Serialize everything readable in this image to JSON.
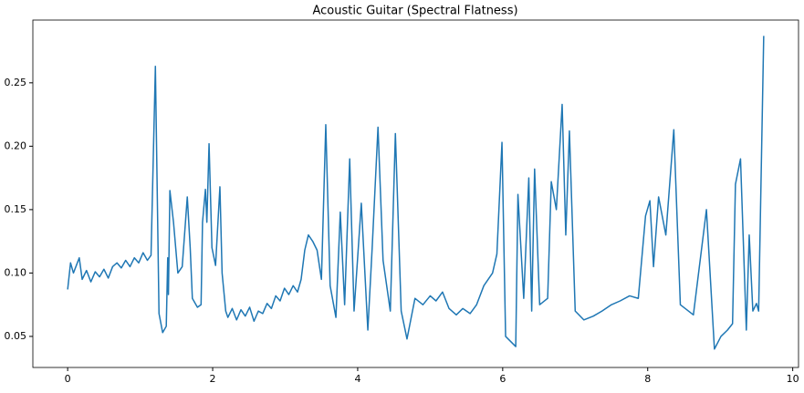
{
  "chart_data": {
    "type": "line",
    "title": "Acoustic Guitar (Spectral Flatness)",
    "x": [
      0,
      0.04,
      0.08,
      0.12,
      0.16,
      0.2,
      0.26,
      0.32,
      0.38,
      0.44,
      0.5,
      0.56,
      0.62,
      0.68,
      0.74,
      0.8,
      0.86,
      0.92,
      0.98,
      1.04,
      1.1,
      1.15,
      1.21,
      1.26,
      1.31,
      1.36,
      1.38,
      1.39,
      1.41,
      1.46,
      1.52,
      1.58,
      1.65,
      1.69,
      1.72,
      1.79,
      1.84,
      1.86,
      1.9,
      1.92,
      1.95,
      1.99,
      2.04,
      2.1,
      2.13,
      2.18,
      2.21,
      2.27,
      2.33,
      2.39,
      2.45,
      2.51,
      2.57,
      2.63,
      2.69,
      2.75,
      2.81,
      2.87,
      2.93,
      2.99,
      3.05,
      3.11,
      3.17,
      3.22,
      3.27,
      3.32,
      3.38,
      3.44,
      3.5,
      3.56,
      3.62,
      3.7,
      3.76,
      3.82,
      3.89,
      3.95,
      4.05,
      4.14,
      4.2,
      4.28,
      4.35,
      4.45,
      4.52,
      4.6,
      4.68,
      4.79,
      4.9,
      5.0,
      5.08,
      5.17,
      5.26,
      5.36,
      5.45,
      5.55,
      5.64,
      5.74,
      5.86,
      5.92,
      5.99,
      6.04,
      6.18,
      6.21,
      6.29,
      6.36,
      6.4,
      6.44,
      6.51,
      6.62,
      6.67,
      6.74,
      6.82,
      6.87,
      6.92,
      7.0,
      7.12,
      7.25,
      7.37,
      7.5,
      7.62,
      7.75,
      7.87,
      7.97,
      8.03,
      8.08,
      8.15,
      8.25,
      8.36,
      8.45,
      8.63,
      8.81,
      8.92,
      9.01,
      9.1,
      9.17,
      9.21,
      9.28,
      9.36,
      9.4,
      9.45,
      9.5,
      9.53,
      9.6
    ],
    "values": [
      0.087,
      0.108,
      0.1,
      0.106,
      0.112,
      0.095,
      0.102,
      0.093,
      0.101,
      0.097,
      0.103,
      0.096,
      0.105,
      0.108,
      0.104,
      0.11,
      0.105,
      0.112,
      0.108,
      0.116,
      0.11,
      0.114,
      0.263,
      0.068,
      0.053,
      0.058,
      0.112,
      0.083,
      0.165,
      0.14,
      0.1,
      0.105,
      0.16,
      0.12,
      0.08,
      0.073,
      0.075,
      0.14,
      0.166,
      0.14,
      0.202,
      0.12,
      0.106,
      0.168,
      0.1,
      0.07,
      0.065,
      0.072,
      0.063,
      0.071,
      0.066,
      0.073,
      0.062,
      0.07,
      0.068,
      0.076,
      0.072,
      0.082,
      0.078,
      0.088,
      0.083,
      0.09,
      0.085,
      0.095,
      0.118,
      0.13,
      0.125,
      0.118,
      0.095,
      0.217,
      0.09,
      0.065,
      0.148,
      0.075,
      0.19,
      0.07,
      0.155,
      0.055,
      0.12,
      0.215,
      0.11,
      0.07,
      0.21,
      0.07,
      0.048,
      0.08,
      0.075,
      0.082,
      0.078,
      0.085,
      0.072,
      0.067,
      0.072,
      0.068,
      0.075,
      0.09,
      0.1,
      0.115,
      0.203,
      0.05,
      0.042,
      0.162,
      0.08,
      0.175,
      0.07,
      0.182,
      0.075,
      0.08,
      0.172,
      0.15,
      0.233,
      0.13,
      0.212,
      0.07,
      0.063,
      0.066,
      0.07,
      0.075,
      0.078,
      0.082,
      0.08,
      0.145,
      0.157,
      0.105,
      0.16,
      0.13,
      0.213,
      0.075,
      0.067,
      0.15,
      0.04,
      0.05,
      0.055,
      0.06,
      0.17,
      0.19,
      0.055,
      0.13,
      0.07,
      0.076,
      0.07,
      0.287
    ],
    "color": "#1f77b4",
    "xlim": [
      -0.48,
      10.08
    ],
    "ylim": [
      0.0255,
      0.2995
    ],
    "xticks": [
      0,
      2,
      4,
      6,
      8,
      10
    ],
    "yticks": [
      0.05,
      {
        "value": 0.1,
        "label": "0.10"
      },
      0.15,
      {
        "value": 0.2,
        "label": "0.20"
      },
      0.25
    ]
  }
}
